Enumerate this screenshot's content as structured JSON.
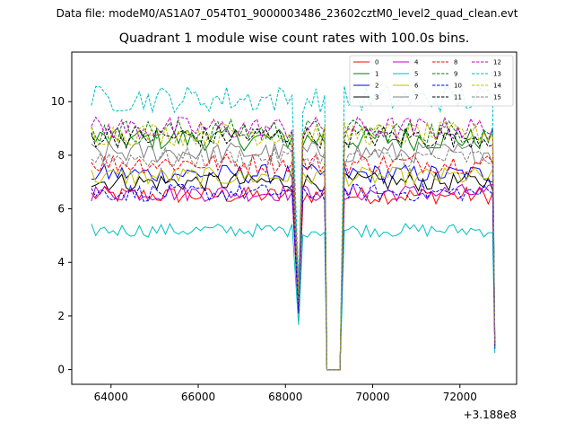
{
  "header": {
    "file_label": "Data file: modeM0/AS1A07_054T01_9000003486_23602cztM0_level2_quad_clean.evt"
  },
  "chart_data": {
    "type": "line",
    "title": "Quadrant 1 module wise count rates with 100.0s bins.",
    "xlabel": "",
    "ylabel": "",
    "x_offset_label": "+3.188e8",
    "xlim": [
      63100,
      73300
    ],
    "ylim": [
      -0.55,
      11.85
    ],
    "xticks": [
      64000,
      66000,
      68000,
      70000,
      72000
    ],
    "yticks": [
      0,
      2,
      4,
      6,
      8,
      10
    ],
    "grid": false,
    "legend_position": "top-right",
    "colors": {
      "red": "#ff0000",
      "green": "#008000",
      "blue": "#0000ff",
      "black": "#000000",
      "magenta": "#bf00bf",
      "cyan": "#00bfbf",
      "olive": "#bfbf00",
      "gray": "#808080"
    },
    "series": [
      {
        "name": "0",
        "color": "#ff0000",
        "dashed": false,
        "mean": 6.5
      },
      {
        "name": "1",
        "color": "#008000",
        "dashed": false,
        "mean": 8.6
      },
      {
        "name": "2",
        "color": "#0000ff",
        "dashed": false,
        "mean": 7.3
      },
      {
        "name": "3",
        "color": "#000000",
        "dashed": false,
        "mean": 7.0
      },
      {
        "name": "4",
        "color": "#bf00bf",
        "dashed": false,
        "mean": 6.6
      },
      {
        "name": "5",
        "color": "#00bfbf",
        "dashed": false,
        "mean": 5.2
      },
      {
        "name": "6",
        "color": "#bfbf00",
        "dashed": false,
        "mean": 7.2
      },
      {
        "name": "7",
        "color": "#808080",
        "dashed": false,
        "mean": 8.1
      },
      {
        "name": "8",
        "color": "#ff0000",
        "dashed": true,
        "mean": 7.7
      },
      {
        "name": "9",
        "color": "#008000",
        "dashed": true,
        "mean": 8.9
      },
      {
        "name": "10",
        "color": "#0000ff",
        "dashed": true,
        "mean": 6.6
      },
      {
        "name": "11",
        "color": "#000000",
        "dashed": true,
        "mean": 8.7
      },
      {
        "name": "12",
        "color": "#bf00bf",
        "dashed": true,
        "mean": 9.0
      },
      {
        "name": "13",
        "color": "#00bfbf",
        "dashed": true,
        "mean": 10.1
      },
      {
        "name": "14",
        "color": "#bfbf00",
        "dashed": true,
        "mean": 8.8
      },
      {
        "name": "15",
        "color": "#808080",
        "dashed": true,
        "mean": 7.9
      }
    ],
    "time_bins": {
      "segments": [
        [
          63550,
          68150
        ],
        [
          68400,
          68900
        ],
        [
          69350,
          72750
        ]
      ],
      "bin_width": 100,
      "dips": [
        {
          "x": 68300,
          "relative_level": 0.32
        },
        {
          "x": 68950,
          "relative_level": 0.0
        },
        {
          "x": 69100,
          "relative_level": 0.0
        },
        {
          "x": 69250,
          "relative_level": 0.0
        },
        {
          "x": 72800,
          "relative_level": 0.12
        }
      ],
      "noise": 0.35
    }
  }
}
